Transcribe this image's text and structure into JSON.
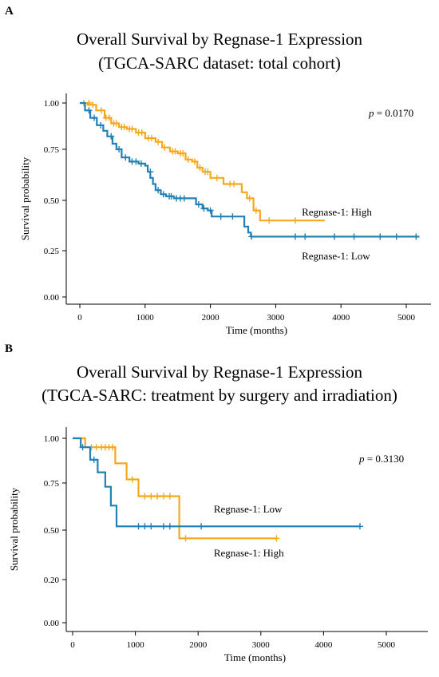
{
  "colors": {
    "high": "#F5A81C",
    "low": "#2280B4",
    "axis": "#000000"
  },
  "chart_data": [
    {
      "panel": "A",
      "type": "line",
      "title": "Overall Survival by Regnase-1 Expression",
      "subtitle": "(TGCA-SARC dataset: total cohort)",
      "xlabel": "Time (months)",
      "ylabel": "Survival probability",
      "xlim": [
        0,
        5200
      ],
      "ylim": [
        0,
        1.0
      ],
      "xticks": [
        "0",
        "1000",
        "2000",
        "3000",
        "4000",
        "5000"
      ],
      "yticks": [
        "0.00",
        "0.25",
        "0.50",
        "0.75",
        "1.00"
      ],
      "annotation": {
        "p_label": "p",
        "p_value": " = 0.0170"
      },
      "series": [
        {
          "name": "Regnase-1: High",
          "color_key": "high",
          "steps": [
            [
              0,
              1.0
            ],
            [
              120,
              0.99
            ],
            [
              250,
              0.96
            ],
            [
              380,
              0.92
            ],
            [
              480,
              0.89
            ],
            [
              600,
              0.87
            ],
            [
              720,
              0.86
            ],
            [
              860,
              0.84
            ],
            [
              1000,
              0.81
            ],
            [
              1160,
              0.79
            ],
            [
              1260,
              0.76
            ],
            [
              1380,
              0.74
            ],
            [
              1500,
              0.73
            ],
            [
              1620,
              0.7
            ],
            [
              1720,
              0.69
            ],
            [
              1800,
              0.66
            ],
            [
              1880,
              0.64
            ],
            [
              2000,
              0.61
            ],
            [
              2200,
              0.58
            ],
            [
              2400,
              0.58
            ],
            [
              2480,
              0.54
            ],
            [
              2560,
              0.51
            ],
            [
              2660,
              0.45
            ],
            [
              2760,
              0.4
            ],
            [
              3750,
              0.4
            ]
          ],
          "censors": [
            [
              60,
              1.0
            ],
            [
              140,
              1.0
            ],
            [
              200,
              0.99
            ],
            [
              330,
              0.96
            ],
            [
              400,
              0.92
            ],
            [
              450,
              0.92
            ],
            [
              520,
              0.89
            ],
            [
              560,
              0.89
            ],
            [
              640,
              0.87
            ],
            [
              680,
              0.87
            ],
            [
              760,
              0.86
            ],
            [
              800,
              0.86
            ],
            [
              900,
              0.84
            ],
            [
              950,
              0.84
            ],
            [
              1050,
              0.81
            ],
            [
              1100,
              0.81
            ],
            [
              1200,
              0.79
            ],
            [
              1300,
              0.76
            ],
            [
              1420,
              0.74
            ],
            [
              1460,
              0.74
            ],
            [
              1540,
              0.73
            ],
            [
              1580,
              0.73
            ],
            [
              1660,
              0.7
            ],
            [
              1760,
              0.69
            ],
            [
              1840,
              0.66
            ],
            [
              1920,
              0.64
            ],
            [
              1960,
              0.64
            ],
            [
              2100,
              0.61
            ],
            [
              2300,
              0.58
            ],
            [
              2360,
              0.58
            ],
            [
              2600,
              0.51
            ],
            [
              2700,
              0.45
            ],
            [
              2900,
              0.4
            ],
            [
              3300,
              0.4
            ]
          ],
          "label_pos": [
            3400,
            0.44
          ]
        },
        {
          "name": "Regnase-1: Low",
          "color_key": "low",
          "steps": [
            [
              0,
              1.0
            ],
            [
              80,
              0.96
            ],
            [
              160,
              0.92
            ],
            [
              260,
              0.88
            ],
            [
              360,
              0.85
            ],
            [
              420,
              0.82
            ],
            [
              500,
              0.78
            ],
            [
              560,
              0.75
            ],
            [
              640,
              0.71
            ],
            [
              760,
              0.69
            ],
            [
              900,
              0.68
            ],
            [
              1000,
              0.67
            ],
            [
              1040,
              0.64
            ],
            [
              1080,
              0.61
            ],
            [
              1120,
              0.58
            ],
            [
              1160,
              0.55
            ],
            [
              1240,
              0.53
            ],
            [
              1320,
              0.52
            ],
            [
              1440,
              0.51
            ],
            [
              1660,
              0.51
            ],
            [
              1780,
              0.48
            ],
            [
              1880,
              0.46
            ],
            [
              1960,
              0.45
            ],
            [
              2020,
              0.42
            ],
            [
              2460,
              0.42
            ],
            [
              2520,
              0.37
            ],
            [
              2580,
              0.34
            ],
            [
              2620,
              0.32
            ],
            [
              5200,
              0.32
            ]
          ],
          "censors": [
            [
              140,
              0.96
            ],
            [
              220,
              0.92
            ],
            [
              320,
              0.88
            ],
            [
              480,
              0.82
            ],
            [
              600,
              0.75
            ],
            [
              700,
              0.71
            ],
            [
              800,
              0.69
            ],
            [
              860,
              0.69
            ],
            [
              940,
              0.68
            ],
            [
              1080,
              0.64
            ],
            [
              1200,
              0.55
            ],
            [
              1280,
              0.53
            ],
            [
              1370,
              0.52
            ],
            [
              1400,
              0.52
            ],
            [
              1480,
              0.51
            ],
            [
              1540,
              0.51
            ],
            [
              1600,
              0.51
            ],
            [
              1820,
              0.48
            ],
            [
              1900,
              0.46
            ],
            [
              2000,
              0.45
            ],
            [
              2160,
              0.42
            ],
            [
              2340,
              0.42
            ],
            [
              2630,
              0.32
            ],
            [
              3300,
              0.32
            ],
            [
              3450,
              0.32
            ],
            [
              3900,
              0.32
            ],
            [
              4200,
              0.32
            ],
            [
              4600,
              0.32
            ],
            [
              4850,
              0.32
            ],
            [
              5150,
              0.32
            ]
          ],
          "label_pos": [
            3400,
            0.22
          ]
        }
      ]
    },
    {
      "panel": "B",
      "type": "line",
      "title": "Overall Survival by Regnase-1 Expression",
      "subtitle": "(TGCA-SARC: treatment by surgery and irradiation)",
      "xlabel": "Time (months)",
      "ylabel": "Survival probability",
      "xlim": [
        0,
        5200
      ],
      "ylim": [
        0,
        1.0
      ],
      "xticks": [
        "0",
        "1000",
        "2000",
        "3000",
        "4000",
        "5000"
      ],
      "yticks": [
        "0.00",
        "0.20",
        "0.50",
        "0.75",
        "1.00"
      ],
      "annotation": {
        "p_label": "p",
        "p_value": " = 0.3130"
      },
      "series": [
        {
          "name": "Regnase-1: High",
          "color_key": "high",
          "steps": [
            [
              0,
              1.0
            ],
            [
              200,
              0.95
            ],
            [
              680,
              0.86
            ],
            [
              860,
              0.77
            ],
            [
              1050,
              0.68
            ],
            [
              1700,
              0.45
            ],
            [
              3250,
              0.45
            ]
          ],
          "censors": [
            [
              300,
              0.95
            ],
            [
              380,
              0.95
            ],
            [
              460,
              0.95
            ],
            [
              520,
              0.95
            ],
            [
              580,
              0.95
            ],
            [
              640,
              0.95
            ],
            [
              950,
              0.77
            ],
            [
              1150,
              0.68
            ],
            [
              1250,
              0.68
            ],
            [
              1350,
              0.68
            ],
            [
              1450,
              0.68
            ],
            [
              1550,
              0.68
            ],
            [
              1800,
              0.45
            ],
            [
              3250,
              0.45
            ]
          ],
          "label_pos": [
            2250,
            0.36
          ]
        },
        {
          "name": "Regnase-1: Low",
          "color_key": "low",
          "steps": [
            [
              0,
              1.0
            ],
            [
              130,
              0.95
            ],
            [
              280,
              0.88
            ],
            [
              400,
              0.81
            ],
            [
              520,
              0.73
            ],
            [
              610,
              0.63
            ],
            [
              700,
              0.52
            ],
            [
              4580,
              0.52
            ]
          ],
          "censors": [
            [
              160,
              0.95
            ],
            [
              340,
              0.88
            ],
            [
              1050,
              0.52
            ],
            [
              1150,
              0.52
            ],
            [
              1250,
              0.52
            ],
            [
              1450,
              0.52
            ],
            [
              1550,
              0.52
            ],
            [
              2050,
              0.52
            ],
            [
              4580,
              0.52
            ]
          ],
          "label_pos": [
            2250,
            0.61
          ]
        }
      ]
    }
  ]
}
